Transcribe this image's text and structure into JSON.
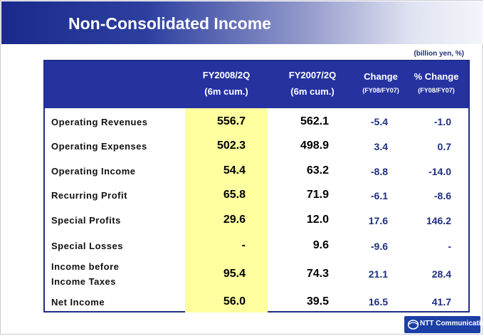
{
  "title": "Non-Consolidated Income",
  "unit_note": "(billion yen, %)",
  "columns": [
    {
      "line1": "FY2008/2Q",
      "line2": "(6m cum.)"
    },
    {
      "line1": "FY2007/2Q",
      "line2": "(6m cum.)"
    },
    {
      "line1": "Change",
      "line2": "(FY08/FY07)"
    },
    {
      "line1": "% Change",
      "line2": "(FY08/FY07)"
    }
  ],
  "rows": [
    {
      "label_line1": "Operating Revenues",
      "label_line2": "",
      "fy08": "556.7",
      "fy07": "562.1",
      "change": "-5.4",
      "pct": "-1.0"
    },
    {
      "label_line1": "Operating Expenses",
      "label_line2": "",
      "fy08": "502.3",
      "fy07": "498.9",
      "change": "3.4",
      "pct": "0.7"
    },
    {
      "label_line1": "Operating Income",
      "label_line2": "",
      "fy08": "54.4",
      "fy07": "63.2",
      "change": "-8.8",
      "pct": "-14.0"
    },
    {
      "label_line1": "Recurring Profit",
      "label_line2": "",
      "fy08": "65.8",
      "fy07": "71.9",
      "change": "-6.1",
      "pct": "-8.6"
    },
    {
      "label_line1": "Special Profits",
      "label_line2": "",
      "fy08": "29.6",
      "fy07": "12.0",
      "change": "17.6",
      "pct": "146.2"
    },
    {
      "label_line1": "Special Losses",
      "label_line2": "",
      "fy08": "-",
      "fy07": "9.6",
      "change": "-9.6",
      "pct": "-"
    },
    {
      "label_line1": "Income before",
      "label_line2": "Income Taxes",
      "fy08": "95.4",
      "fy07": "74.3",
      "change": "21.1",
      "pct": "28.4"
    },
    {
      "label_line1": "Net Income",
      "label_line2": "",
      "fy08": "56.0",
      "fy07": "39.5",
      "change": "16.5",
      "pct": "41.7"
    }
  ],
  "logo": {
    "text": "NTT Communications"
  },
  "colors": {
    "header_bg": "#2532a0",
    "highlight_col": "#ffffa0",
    "change_text": "#1f2e86"
  }
}
